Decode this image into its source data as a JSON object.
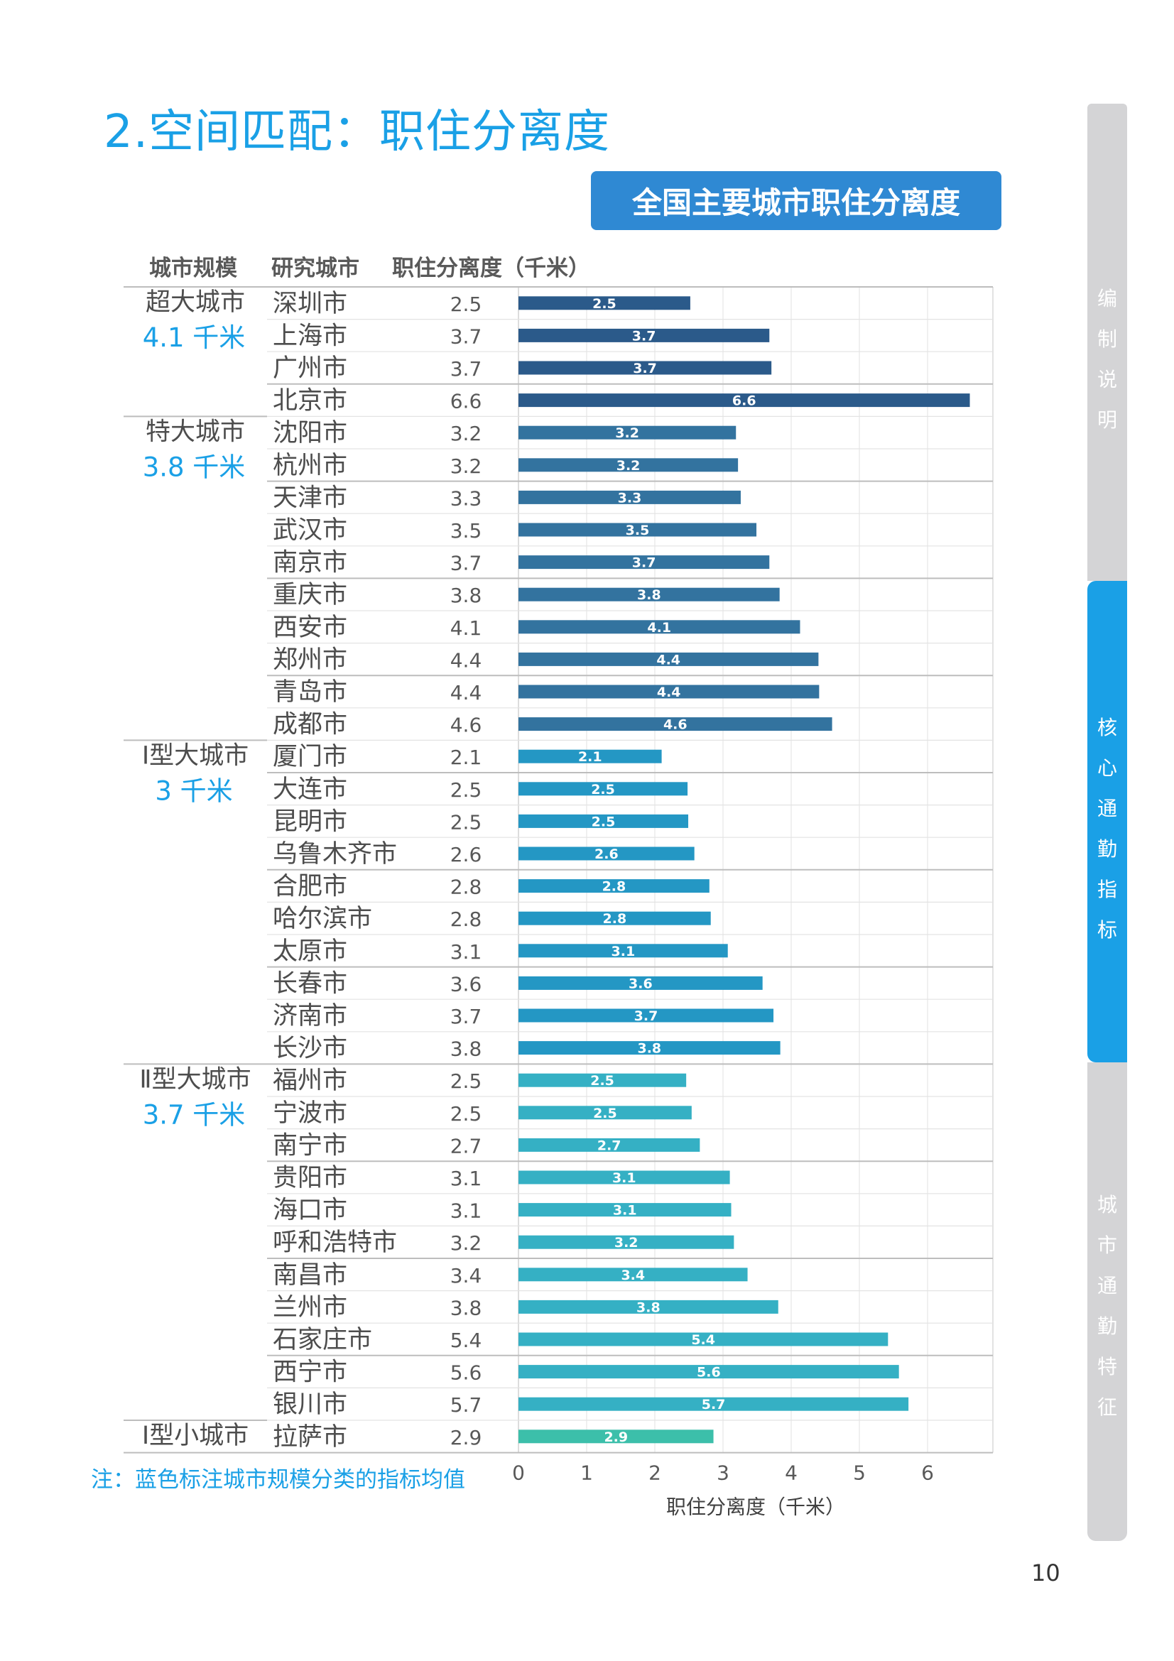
{
  "page": {
    "title": "2.空间匹配：职住分离度",
    "page_number": "10",
    "note": "注：蓝色标注城市规模分类的指标均值"
  },
  "side_nav": [
    {
      "label": "编制说明",
      "active": false
    },
    {
      "label": "核心通勤指标",
      "active": true
    },
    {
      "label": "城市通勤特征",
      "active": false
    }
  ],
  "colors": {
    "accent": "#1aa0e6",
    "title_box": "#2f89d3",
    "side_tab_inactive": "#d4d4d6",
    "group_colors": [
      "#2b5a8a",
      "#33739f",
      "#2497c4",
      "#35b0c4",
      "#3cbfaa"
    ]
  },
  "chart_data": {
    "type": "bar",
    "orientation": "horizontal",
    "title": "全国主要城市职住分离度",
    "column_headers": [
      "城市规模",
      "研究城市",
      "职住分离度（千米）"
    ],
    "xlabel": "职住分离度（千米）",
    "xlim": [
      0,
      7
    ],
    "xticks": [
      "0",
      "1",
      "2",
      "3",
      "4",
      "5",
      "6"
    ],
    "groups": [
      {
        "name": "超大城市",
        "mean_label": "4.1 千米",
        "start": 0,
        "end": 3
      },
      {
        "name": "特大城市",
        "mean_label": "3.8 千米",
        "start": 4,
        "end": 13
      },
      {
        "name": "Ⅰ型大城市",
        "mean_label": "3 千米",
        "start": 14,
        "end": 23
      },
      {
        "name": "Ⅱ型大城市",
        "mean_label": "3.7 千米",
        "start": 24,
        "end": 34
      },
      {
        "name": "Ⅰ型小城市",
        "mean_label": "",
        "start": 35,
        "end": 35
      }
    ],
    "categories": [
      "深圳市",
      "上海市",
      "广州市",
      "北京市",
      "沈阳市",
      "杭州市",
      "天津市",
      "武汉市",
      "南京市",
      "重庆市",
      "西安市",
      "郑州市",
      "青岛市",
      "成都市",
      "厦门市",
      "大连市",
      "昆明市",
      "乌鲁木齐市",
      "合肥市",
      "哈尔滨市",
      "太原市",
      "长春市",
      "济南市",
      "长沙市",
      "福州市",
      "宁波市",
      "南宁市",
      "贵阳市",
      "海口市",
      "呼和浩特市",
      "南昌市",
      "兰州市",
      "石家庄市",
      "西宁市",
      "银川市",
      "拉萨市"
    ],
    "value_labels": [
      "2.5",
      "3.7",
      "3.7",
      "6.6",
      "3.2",
      "3.2",
      "3.3",
      "3.5",
      "3.7",
      "3.8",
      "4.1",
      "4.4",
      "4.4",
      "4.6",
      "2.1",
      "2.5",
      "2.5",
      "2.6",
      "2.8",
      "2.8",
      "3.1",
      "3.6",
      "3.7",
      "3.8",
      "2.5",
      "2.5",
      "2.7",
      "3.1",
      "3.1",
      "3.2",
      "3.4",
      "3.8",
      "5.4",
      "5.6",
      "5.7",
      "2.9"
    ],
    "values": [
      2.52,
      3.68,
      3.71,
      6.62,
      3.19,
      3.22,
      3.26,
      3.49,
      3.68,
      3.83,
      4.13,
      4.4,
      4.41,
      4.6,
      2.1,
      2.48,
      2.49,
      2.58,
      2.8,
      2.82,
      3.07,
      3.58,
      3.74,
      3.84,
      2.46,
      2.54,
      2.66,
      3.1,
      3.12,
      3.16,
      3.36,
      3.81,
      5.42,
      5.58,
      5.72,
      2.86
    ]
  }
}
